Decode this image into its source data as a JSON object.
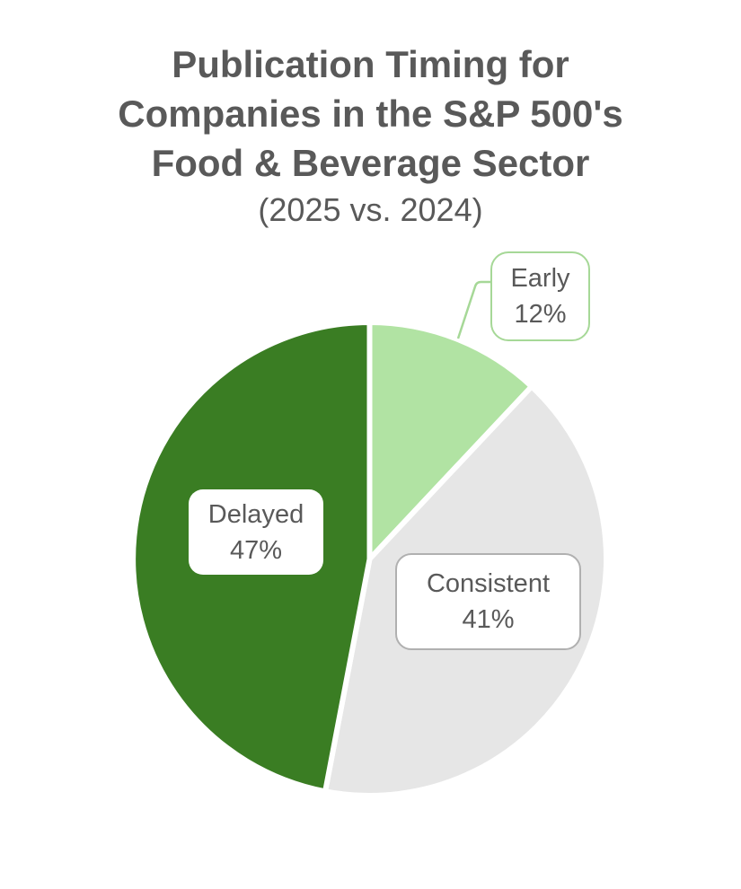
{
  "header": {
    "title_lines": [
      "Publication Timing for",
      "Companies in the S&P 500's",
      "Food & Beverage Sector"
    ],
    "subtitle": "(2025 vs. 2024)"
  },
  "colors": {
    "title_text": "#595959",
    "label_text": "#595959",
    "background": "#ffffff",
    "slice_separator": "#ffffff",
    "early_fill": "#b1e3a3",
    "consistent_fill": "#e6e6e6",
    "delayed_fill": "#3a7d23",
    "early_callout_border": "#a6d897",
    "consistent_callout_border": "#b0b0b0",
    "leader_line": "#a6d897"
  },
  "chart_data": {
    "type": "pie",
    "title": "Publication Timing for Companies in the S&P 500's Food & Beverage Sector",
    "subtitle": "(2025 vs. 2024)",
    "categories": [
      "Early",
      "Consistent",
      "Delayed"
    ],
    "values": [
      12,
      41,
      47
    ],
    "unit": "%",
    "start_angle_deg": 0,
    "direction": "clockwise",
    "legend": "none",
    "data_label_style": "rounded callout boxes with category name and percent",
    "slices": [
      {
        "label": "Early",
        "value": 12,
        "pct_label": "12%",
        "color": "#b1e3a3",
        "callout": "outside top-right with leader line"
      },
      {
        "label": "Consistent",
        "value": 41,
        "pct_label": "41%",
        "color": "#e6e6e6",
        "callout": "inside slice"
      },
      {
        "label": "Delayed",
        "value": 47,
        "pct_label": "47%",
        "color": "#3a7d23",
        "callout": "inside slice"
      }
    ]
  }
}
